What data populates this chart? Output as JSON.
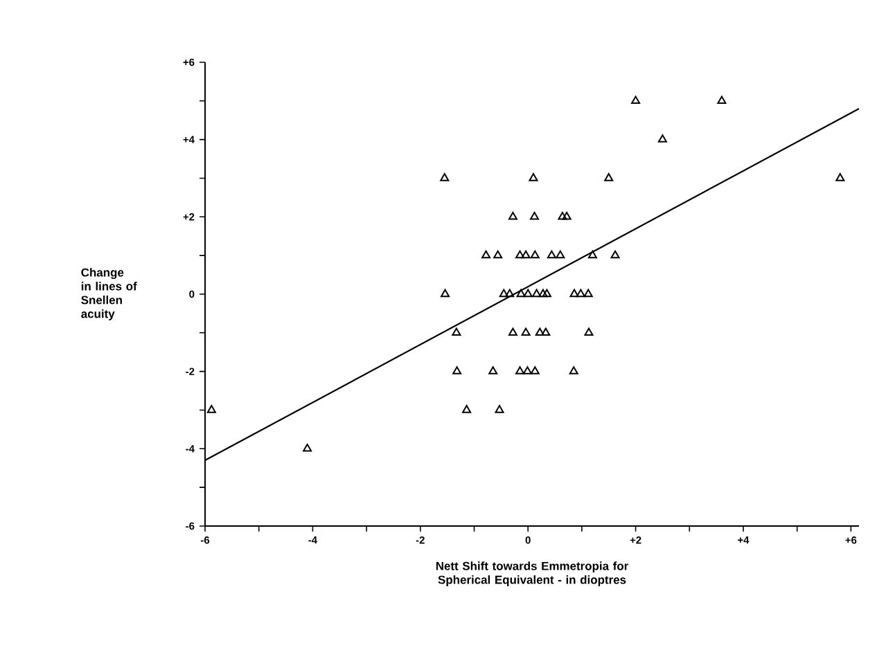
{
  "chart_data": {
    "type": "scatter",
    "xlabel": "Nett Shift towards Emmetropia for Spherical Equivalent - in dioptres",
    "ylabel": "Change in lines of Snellen acuity",
    "xlim": [
      -6,
      6.15
    ],
    "ylim": [
      -6,
      6
    ],
    "xticks": [
      {
        "value": -6,
        "label": "-6"
      },
      {
        "value": -5,
        "label": null
      },
      {
        "value": -4,
        "label": "-4"
      },
      {
        "value": -3,
        "label": null
      },
      {
        "value": -2,
        "label": "-2"
      },
      {
        "value": -1,
        "label": null
      },
      {
        "value": 0,
        "label": "0"
      },
      {
        "value": 1,
        "label": null
      },
      {
        "value": 2,
        "label": "+2"
      },
      {
        "value": 3,
        "label": null
      },
      {
        "value": 4,
        "label": "+4"
      },
      {
        "value": 5,
        "label": null
      },
      {
        "value": 6,
        "label": "+6"
      }
    ],
    "yticks": [
      {
        "value": -6,
        "label": "-6"
      },
      {
        "value": -5,
        "label": null
      },
      {
        "value": -4,
        "label": "-4"
      },
      {
        "value": -3,
        "label": null
      },
      {
        "value": -2,
        "label": "-2"
      },
      {
        "value": -1,
        "label": null
      },
      {
        "value": 0,
        "label": "0"
      },
      {
        "value": 1,
        "label": null
      },
      {
        "value": 2,
        "label": "+2"
      },
      {
        "value": 3,
        "label": null
      },
      {
        "value": 4,
        "label": "+4"
      },
      {
        "value": 5,
        "label": null
      },
      {
        "value": 6,
        "label": "+6"
      }
    ],
    "series": [
      {
        "color": "#000000",
        "marker": "triangle",
        "x": [
          2.0,
          3.6,
          2.5,
          -1.55,
          0.1,
          1.5,
          5.8,
          -0.28,
          0.12,
          0.64,
          0.72,
          -0.78,
          -0.56,
          -0.15,
          -0.04,
          0.13,
          0.44,
          0.6,
          1.2,
          1.62,
          -1.54,
          -0.45,
          -0.34,
          -0.13,
          0.0,
          0.16,
          0.28,
          0.35,
          0.86,
          0.98,
          1.12,
          -1.33,
          -0.28,
          -0.04,
          0.22,
          0.33,
          1.13,
          -1.32,
          -0.65,
          -0.15,
          -0.01,
          0.13,
          0.85,
          -5.88,
          -1.14,
          -0.53,
          -4.1
        ],
        "values": [
          5,
          5,
          4,
          3,
          3,
          3,
          3,
          2,
          2,
          2,
          2,
          1,
          1,
          1,
          1,
          1,
          1,
          1,
          1,
          1,
          0,
          0,
          0,
          0,
          0,
          0,
          0,
          0,
          0,
          0,
          0,
          -1,
          -1,
          -1,
          -1,
          -1,
          -1,
          -2,
          -2,
          -2,
          -2,
          -2,
          -2,
          -3,
          -3,
          -3,
          -4
        ]
      },
      {
        "type": "line",
        "color": "#000000",
        "marker": "none",
        "line_style": "solid",
        "x": [
          -6,
          6.15
        ],
        "values": [
          -4.3,
          4.8
        ]
      }
    ]
  }
}
